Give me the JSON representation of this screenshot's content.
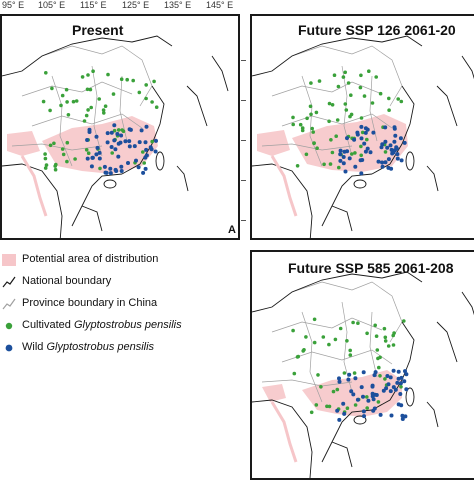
{
  "longitude_labels": [
    "95° E",
    "105° E",
    "115° E",
    "125° E",
    "135° E",
    "145° E"
  ],
  "panels": [
    {
      "title": "Present",
      "letter": "A"
    },
    {
      "title": "Future SSP 126 2061-20"
    },
    {
      "title": "Future SSP 585 2061-208"
    }
  ],
  "legend": {
    "potential": "Potential area of distribution",
    "national": "National boundary",
    "province": "Province boundary in China",
    "cultivated_prefix": "Cultivated ",
    "cultivated_species": "Glyptostrobus pensilis",
    "wild_prefix": "Wild ",
    "wild_species": "Glyptostrobus pensilis"
  },
  "colors": {
    "potential": "#f6c6c9",
    "cultivated": "#3aa13a",
    "wild": "#1c4f9c",
    "border": "#1a1a1a",
    "province": "#a0a0a0"
  }
}
